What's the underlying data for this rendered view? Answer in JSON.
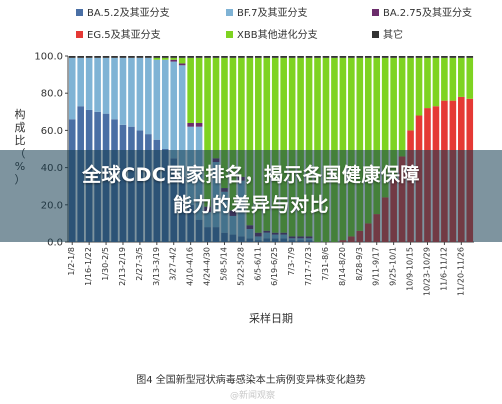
{
  "chart_data": {
    "type": "bar",
    "stacked": true,
    "percent_stacked": true,
    "ylabel": "构成比（%）",
    "xlabel": "采样日期",
    "ylim": [
      0,
      100
    ],
    "yticks": [
      "0.0",
      "20.0",
      "40.0",
      "60.0",
      "80.0",
      "100.0"
    ],
    "legend": [
      {
        "name": "BA.5.2及其亚分支",
        "color": "#4a6fa5"
      },
      {
        "name": "BF.7及其亚分支",
        "color": "#7fb3d5"
      },
      {
        "name": "BA.2.75及其亚分支",
        "color": "#6b2c6b"
      },
      {
        "name": "EG.5及其亚分支",
        "color": "#e53935"
      },
      {
        "name": "XBB其他进化分支",
        "color": "#7ed321"
      },
      {
        "name": "其它",
        "color": "#333333"
      }
    ],
    "x_tick_labels": [
      "1/2-1/8",
      "1/16-1/22",
      "1/30-2/5",
      "2/13-2/19",
      "2/27-3/5",
      "3/13-3/19",
      "3/27-4/2",
      "4/10-4/16",
      "4/24-4/30",
      "5/8-5/14",
      "5/22-5/28",
      "6/5-6/11",
      "6/19-6/25",
      "7/3-7/9",
      "7/17-7/23",
      "7/31-8/6",
      "8/14-8/20",
      "8/28-9/3",
      "9/11-9/17",
      "9/25-10/1",
      "10/9-10/15",
      "10/23-10/29",
      "11/6-11/12",
      "11/20-11/26"
    ],
    "series_values": {
      "BA.5.2": [
        66,
        73,
        71,
        70,
        69,
        66,
        63,
        62,
        60,
        58,
        55,
        50,
        45,
        35,
        20,
        12,
        8,
        8,
        5,
        4,
        3,
        2,
        1,
        2,
        2,
        2,
        1,
        1,
        1,
        0,
        0,
        0,
        0,
        0,
        0,
        0,
        0,
        0,
        0,
        0,
        0,
        0,
        0,
        0,
        0,
        0,
        0,
        0
      ],
      "BF.7": [
        33,
        26,
        28,
        29,
        30,
        33,
        36,
        37,
        39,
        41,
        43,
        48,
        52,
        60,
        42,
        50,
        8,
        35,
        22,
        10,
        30,
        5,
        2,
        3,
        2,
        2,
        1,
        1,
        1,
        0,
        0,
        0,
        0,
        0,
        0,
        0,
        0,
        0,
        0,
        0,
        0,
        0,
        0,
        0,
        0,
        0,
        0,
        0
      ],
      "BA.2.75": [
        0,
        0,
        0,
        0,
        0,
        0,
        0,
        0,
        0,
        0,
        0,
        0,
        1,
        1,
        2,
        2,
        3,
        2,
        2,
        3,
        2,
        2,
        2,
        1,
        1,
        1,
        1,
        1,
        1,
        0,
        0,
        0,
        0,
        0,
        0,
        0,
        0,
        0,
        0,
        0,
        0,
        0,
        0,
        0,
        0,
        0,
        0,
        0
      ],
      "EG.5": [
        0,
        0,
        0,
        0,
        0,
        0,
        0,
        0,
        0,
        0,
        0,
        0,
        0,
        0,
        0,
        0,
        0,
        0,
        0,
        0,
        0,
        0,
        0,
        0,
        0,
        0,
        0,
        0,
        0,
        0,
        0,
        0,
        1,
        3,
        6,
        10,
        15,
        24,
        34,
        46,
        60,
        68,
        72,
        73,
        76,
        76,
        78,
        77
      ],
      "XBB": [
        0,
        0,
        0,
        0,
        0,
        0,
        0,
        0,
        0,
        0,
        1,
        1,
        1,
        3,
        35,
        35,
        80,
        54,
        70,
        82,
        64,
        90,
        94,
        92,
        94,
        94,
        96,
        96,
        96,
        99,
        99,
        99,
        98,
        96,
        93,
        89,
        84,
        75,
        65,
        53,
        39,
        31,
        27,
        26,
        23,
        23,
        21,
        22
      ],
      "Other": [
        1,
        1,
        1,
        1,
        1,
        1,
        1,
        1,
        1,
        1,
        1,
        1,
        1,
        1,
        1,
        1,
        1,
        1,
        1,
        1,
        1,
        1,
        1,
        1,
        1,
        1,
        1,
        1,
        1,
        1,
        1,
        1,
        1,
        1,
        1,
        1,
        1,
        1,
        1,
        1,
        1,
        1,
        1,
        1,
        1,
        1,
        1,
        1
      ]
    },
    "series_keys": [
      "BA.5.2",
      "BF.7",
      "BA.2.75",
      "EG.5",
      "XBB",
      "Other"
    ]
  },
  "headline_line1": "全球CDC国家排名，揭示各国健康保障",
  "headline_line2": "能力的差异与对比",
  "caption": "图4  全国新型冠状病毒感染本土病例变异株变化趋势",
  "watermark": "@新闻观察"
}
